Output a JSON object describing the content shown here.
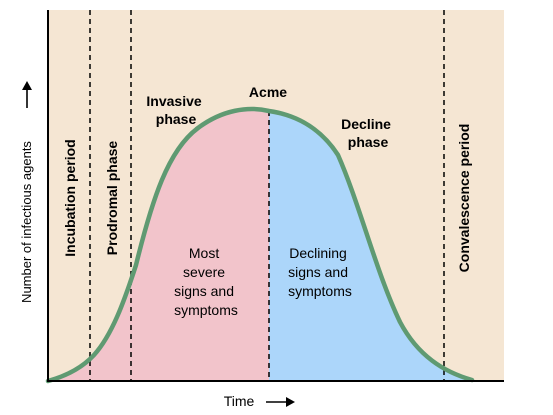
{
  "diagram": {
    "y_axis_label": "Number of infectious agents",
    "x_axis_label": "Time",
    "phases": {
      "incubation": "Incubation period",
      "prodromal": "Prodromal phase",
      "invasive_line1": "Invasive",
      "invasive_line2": "phase",
      "acme": "Acme",
      "decline_line1": "Decline",
      "decline_line2": "phase",
      "convalescence": "Convalescence period"
    },
    "regions": {
      "severe": [
        "Most",
        "severe",
        "signs and",
        "symptoms"
      ],
      "declining": [
        "Declining",
        "signs and",
        "symptoms"
      ]
    },
    "colors": {
      "background": "#f5e6d3",
      "severe_fill": "#f2c4cb",
      "declining_fill": "#acd6fa",
      "curve": "#5f9a72",
      "axis": "#000000"
    }
  }
}
